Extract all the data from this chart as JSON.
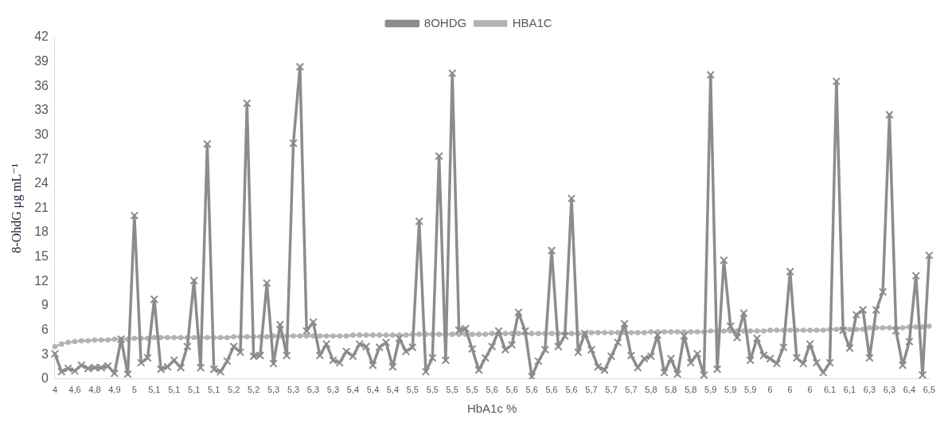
{
  "chart_data": {
    "type": "line",
    "xlabel": "HbA1c %",
    "ylabel": "8-OhdG μg mL⁻¹",
    "categories": [
      "4",
      null,
      null,
      "4,6",
      null,
      null,
      "4,8",
      null,
      null,
      "4,9",
      null,
      null,
      "5",
      null,
      null,
      "5,1",
      null,
      null,
      "5,1",
      null,
      null,
      "5,1",
      null,
      null,
      "5,1",
      null,
      null,
      "5,2",
      null,
      null,
      "5,2",
      null,
      null,
      "5,3",
      null,
      null,
      "5,3",
      null,
      null,
      "5,3",
      null,
      null,
      "5,3",
      null,
      null,
      "5,4",
      null,
      null,
      "5,4",
      null,
      null,
      "5,4",
      null,
      null,
      "5,5",
      null,
      null,
      "5,5",
      null,
      null,
      "5,5",
      null,
      null,
      "5,5",
      null,
      null,
      "5,6",
      null,
      null,
      "5,6",
      null,
      null,
      "5,6",
      null,
      null,
      "5,6",
      null,
      null,
      "5,6",
      null,
      null,
      "5,7",
      null,
      null,
      "5,7",
      null,
      null,
      "5,7",
      null,
      null,
      "5,8",
      null,
      null,
      "5,8",
      null,
      null,
      "5,8",
      null,
      null,
      "5,9",
      null,
      null,
      "5,9",
      null,
      null,
      "5,9",
      null,
      null,
      "6",
      null,
      null,
      "6",
      null,
      null,
      "6",
      null,
      null,
      "6,1",
      null,
      null,
      "6,1",
      null,
      null,
      "6,3",
      null,
      null,
      "6,3",
      null,
      null,
      "6,4",
      null,
      null,
      "6,5"
    ],
    "series": [
      {
        "name": "HBA1C",
        "color": "#b3b3b3",
        "marker": "circle",
        "values": [
          4,
          4.3,
          4.5,
          4.6,
          4.7,
          4.7,
          4.8,
          4.8,
          4.8,
          4.9,
          4.9,
          4.9,
          5,
          5,
          5,
          5.1,
          5.1,
          5.1,
          5.1,
          5.1,
          5.1,
          5.1,
          5.1,
          5.1,
          5.1,
          5.1,
          5.1,
          5.2,
          5.2,
          5.2,
          5.2,
          5.2,
          5.2,
          5.3,
          5.3,
          5.3,
          5.3,
          5.3,
          5.3,
          5.3,
          5.3,
          5.3,
          5.3,
          5.3,
          5.3,
          5.4,
          5.4,
          5.4,
          5.4,
          5.4,
          5.4,
          5.4,
          5.4,
          5.4,
          5.5,
          5.5,
          5.5,
          5.5,
          5.5,
          5.5,
          5.5,
          5.5,
          5.5,
          5.5,
          5.5,
          5.5,
          5.6,
          5.6,
          5.6,
          5.6,
          5.6,
          5.6,
          5.6,
          5.6,
          5.6,
          5.6,
          5.6,
          5.6,
          5.6,
          5.6,
          5.6,
          5.7,
          5.7,
          5.7,
          5.7,
          5.7,
          5.7,
          5.7,
          5.7,
          5.7,
          5.8,
          5.8,
          5.8,
          5.8,
          5.8,
          5.8,
          5.8,
          5.8,
          5.8,
          5.9,
          5.9,
          5.9,
          5.9,
          5.9,
          5.9,
          5.9,
          5.9,
          5.9,
          6,
          6,
          6,
          6,
          6,
          6,
          6,
          6,
          6,
          6.1,
          6.1,
          6.1,
          6.1,
          6.1,
          6.1,
          6.3,
          6.3,
          6.3,
          6.3,
          6.3,
          6.3,
          6.4,
          6.4,
          6.4,
          6.5
        ]
      },
      {
        "name": "8OHDG",
        "color": "#8c8c8c",
        "marker": "cross",
        "values": [
          3.1,
          0.9,
          1.3,
          1.0,
          1.7,
          1.3,
          1.4,
          1.4,
          1.6,
          0.7,
          4.9,
          0.6,
          20.1,
          2.0,
          2.6,
          9.8,
          1.2,
          1.5,
          2.3,
          1.4,
          4.0,
          12.1,
          1.4,
          28.9,
          1.2,
          0.9,
          2.2,
          4.0,
          3.3,
          33.9,
          2.8,
          2.9,
          11.8,
          1.9,
          6.7,
          2.9,
          29.0,
          38.4,
          5.9,
          7.0,
          2.9,
          4.3,
          2.3,
          2.0,
          3.4,
          2.8,
          4.3,
          4.0,
          1.7,
          3.9,
          4.5,
          1.5,
          5.0,
          3.4,
          3.9,
          19.4,
          0.9,
          2.6,
          27.4,
          2.3,
          37.6,
          6.0,
          6.2,
          3.7,
          1.1,
          2.6,
          4.0,
          5.9,
          3.6,
          4.2,
          8.2,
          5.9,
          0.3,
          2.2,
          3.6,
          15.8,
          4.0,
          5.3,
          22.2,
          3.3,
          5.6,
          3.6,
          1.5,
          1.1,
          2.8,
          4.5,
          6.8,
          2.9,
          1.4,
          2.5,
          2.8,
          5.4,
          0.8,
          2.5,
          0.6,
          5.3,
          2.0,
          3.1,
          0.5,
          37.4,
          1.2,
          14.6,
          6.5,
          5.1,
          8.1,
          2.3,
          5.0,
          2.9,
          2.5,
          1.9,
          3.9,
          13.2,
          2.6,
          1.9,
          4.3,
          2.0,
          0.8,
          2.0,
          36.6,
          6.0,
          3.8,
          7.9,
          8.5,
          2.6,
          8.5,
          10.7,
          32.5,
          5.9,
          1.7,
          4.6,
          12.7,
          0.5,
          15.2
        ]
      }
    ],
    "ylim": [
      0,
      42
    ],
    "yticks": [
      0,
      3,
      6,
      9,
      12,
      15,
      18,
      21,
      24,
      27,
      30,
      33,
      36,
      39,
      42
    ],
    "grid": false,
    "legend": "top",
    "line_style": "solid"
  }
}
